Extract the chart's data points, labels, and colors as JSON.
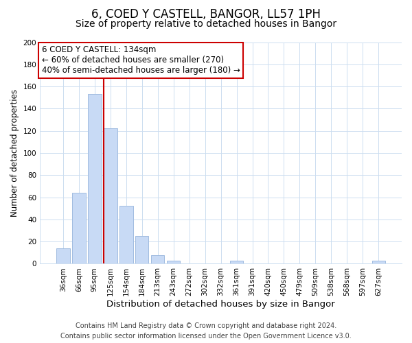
{
  "title": "6, COED Y CASTELL, BANGOR, LL57 1PH",
  "subtitle": "Size of property relative to detached houses in Bangor",
  "xlabel": "Distribution of detached houses by size in Bangor",
  "ylabel": "Number of detached properties",
  "bar_labels": [
    "36sqm",
    "66sqm",
    "95sqm",
    "125sqm",
    "154sqm",
    "184sqm",
    "213sqm",
    "243sqm",
    "272sqm",
    "302sqm",
    "332sqm",
    "361sqm",
    "391sqm",
    "420sqm",
    "450sqm",
    "479sqm",
    "509sqm",
    "538sqm",
    "568sqm",
    "597sqm",
    "627sqm"
  ],
  "bar_values": [
    14,
    64,
    153,
    122,
    52,
    25,
    8,
    3,
    0,
    0,
    0,
    3,
    0,
    0,
    0,
    0,
    0,
    0,
    0,
    0,
    3
  ],
  "bar_color": "#c8daf5",
  "bar_edge_color": "#a0bce0",
  "vline_color": "#cc0000",
  "vline_index": 3,
  "ylim": [
    0,
    200
  ],
  "yticks": [
    0,
    20,
    40,
    60,
    80,
    100,
    120,
    140,
    160,
    180,
    200
  ],
  "annotation_box_text": "6 COED Y CASTELL: 134sqm\n← 60% of detached houses are smaller (270)\n40% of semi-detached houses are larger (180) →",
  "footer_line1": "Contains HM Land Registry data © Crown copyright and database right 2024.",
  "footer_line2": "Contains public sector information licensed under the Open Government Licence v3.0.",
  "background_color": "#ffffff",
  "grid_color": "#ccddf0",
  "title_fontsize": 12,
  "subtitle_fontsize": 10,
  "xlabel_fontsize": 9.5,
  "ylabel_fontsize": 8.5,
  "tick_fontsize": 7.5,
  "annotation_fontsize": 8.5,
  "footer_fontsize": 7
}
